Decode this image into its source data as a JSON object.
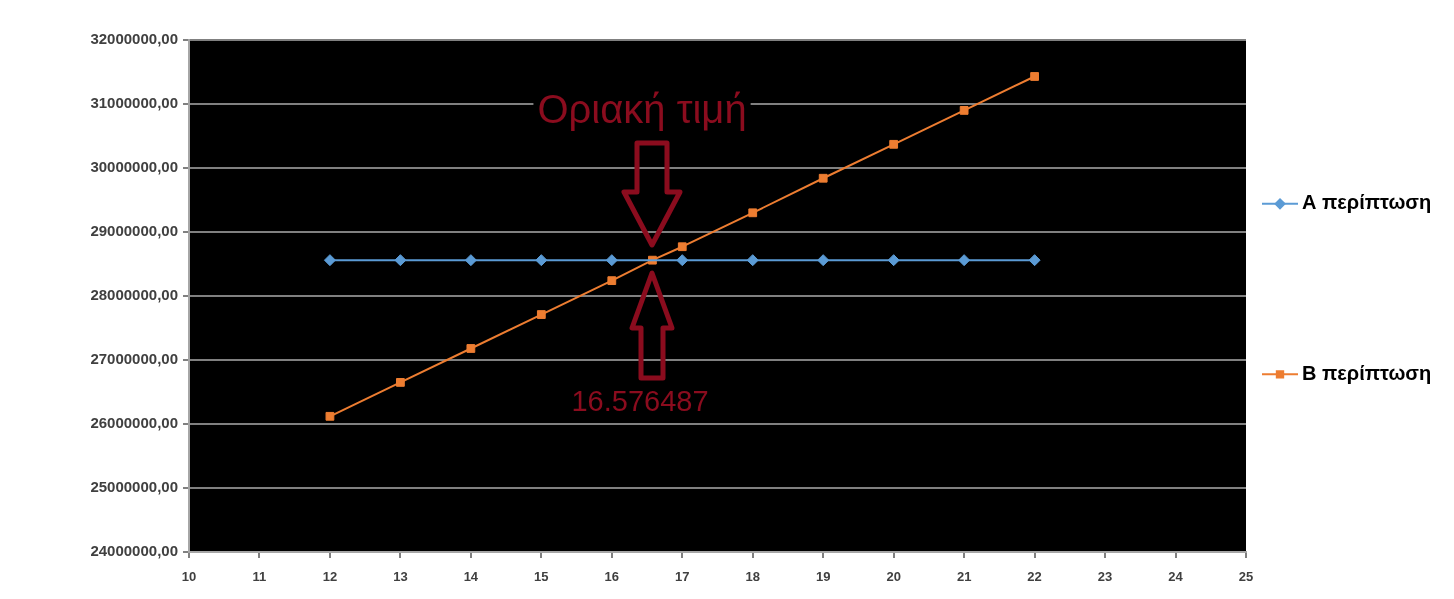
{
  "chart_data": {
    "type": "line",
    "annotations": [
      "Οριακή τιμή",
      "16.576487"
    ],
    "xlim": [
      10,
      25
    ],
    "xticks": [
      10,
      11,
      12,
      13,
      14,
      15,
      16,
      17,
      18,
      19,
      20,
      21,
      22,
      23,
      24,
      25
    ],
    "ylim": [
      24000000,
      32000000
    ],
    "yticks": [
      {
        "value": 24000000,
        "label": "24000000,00"
      },
      {
        "value": 25000000,
        "label": "25000000,00"
      },
      {
        "value": 26000000,
        "label": "26000000,00"
      },
      {
        "value": 27000000,
        "label": "27000000,00"
      },
      {
        "value": 28000000,
        "label": "28000000,00"
      },
      {
        "value": 29000000,
        "label": "29000000,00"
      },
      {
        "value": 30000000,
        "label": "30000000,00"
      },
      {
        "value": 31000000,
        "label": "31000000,00"
      },
      {
        "value": 32000000,
        "label": "32000000,00"
      }
    ],
    "grid": "y",
    "legend": "right",
    "line_style": "solid",
    "series": [
      {
        "name": "Α περίπτωση",
        "color": "#5b9bd5",
        "marker": "diamond",
        "x": [
          12,
          13,
          14,
          15,
          16,
          17,
          18,
          19,
          20,
          21,
          22
        ],
        "values": [
          28560000,
          28560000,
          28560000,
          28560000,
          28560000,
          28560000,
          28560000,
          28560000,
          28560000,
          28560000,
          28560000
        ]
      },
      {
        "name": "Β περίπτωση",
        "color": "#ed7d31",
        "marker": "square",
        "x": [
          12,
          13,
          14,
          15,
          16,
          16.576487,
          17,
          18,
          19,
          20,
          21,
          22
        ],
        "values": [
          26120000,
          26650000,
          27180000,
          27710000,
          28240000,
          28560000,
          28770000,
          29300000,
          29840000,
          30370000,
          30900000,
          31430000
        ]
      }
    ]
  }
}
